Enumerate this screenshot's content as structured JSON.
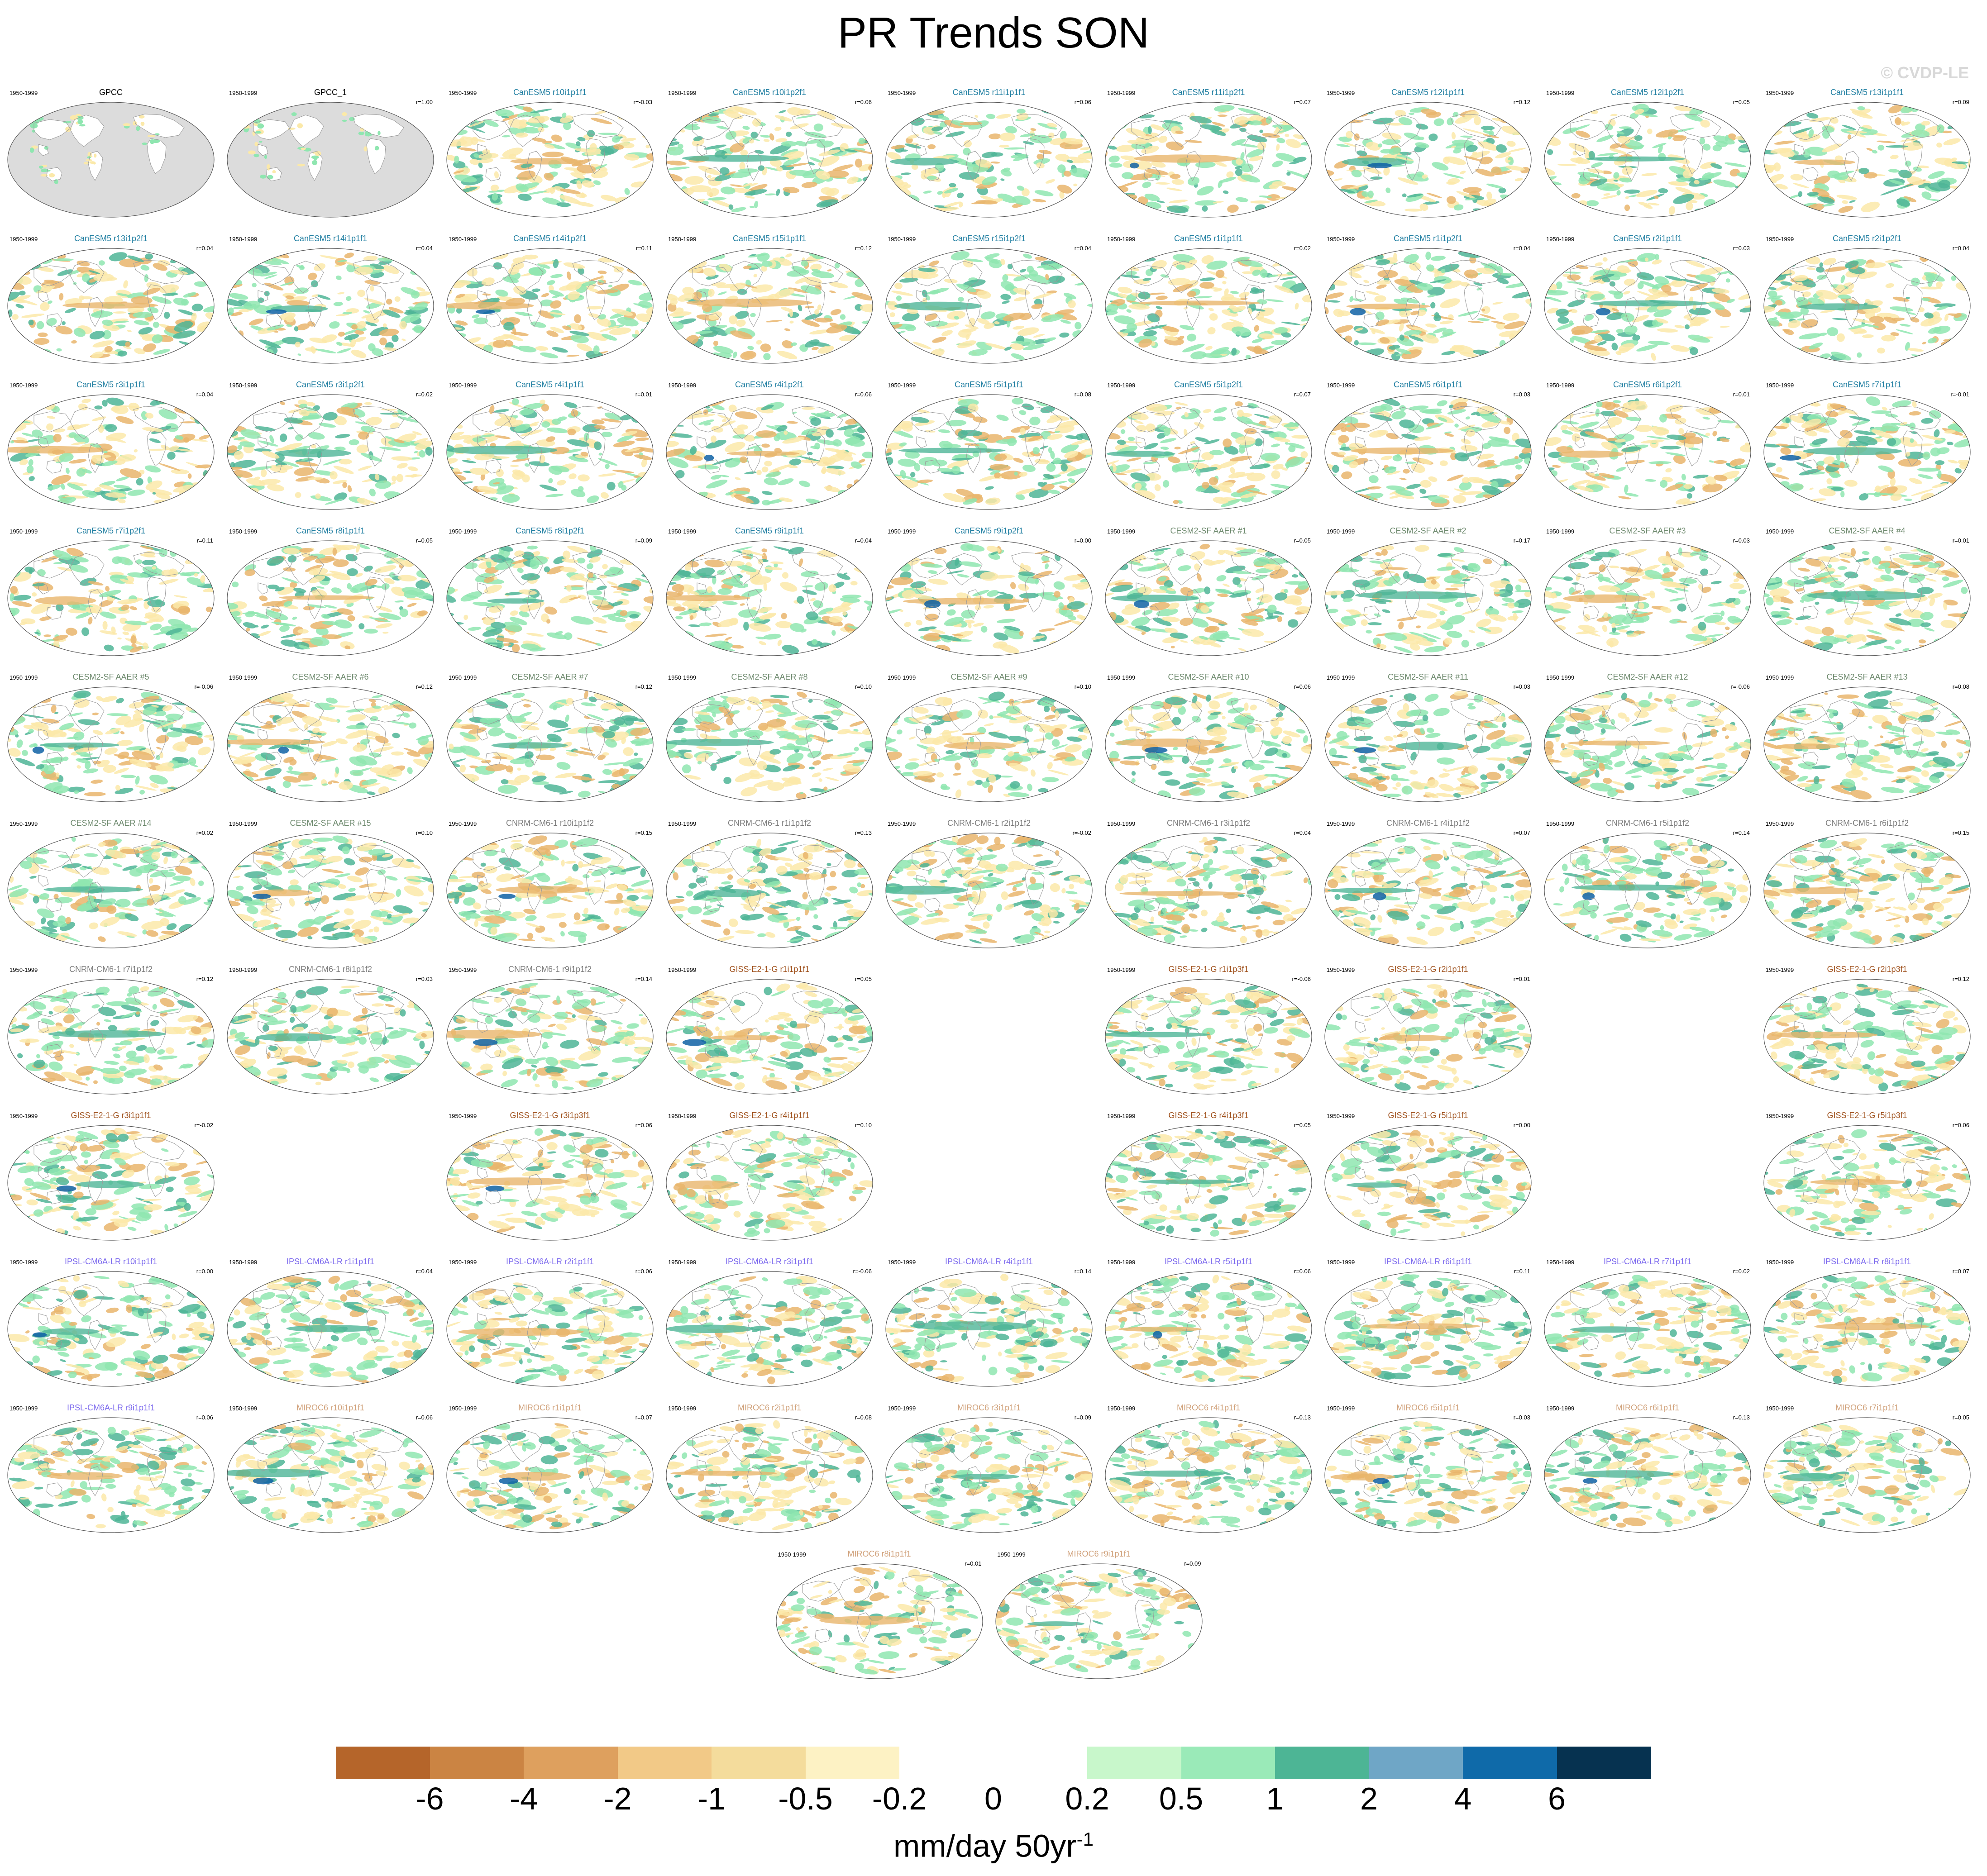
{
  "title": "PR Trends SON",
  "watermark": "© CVDP-LE",
  "period": "1950-1999",
  "colors": {
    "brown_dark": "#b5652a",
    "tan": "#e9b56c",
    "yellow": "#fbe9a9",
    "green": "#8fe6b0",
    "teal": "#4fb597",
    "blue": "#0f62a5",
    "navy": "#063250",
    "land": "#dcdcdc",
    "canesm5_label": "#1f7ea1",
    "cesm2_label": "#6e8a6e",
    "cnrm_label": "#7d7d7d",
    "giss_label": "#a0521e",
    "ipsl_label": "#7b68ee",
    "miroc_label": "#d0a17a"
  },
  "rows": [
    [
      {
        "name": "GPCC",
        "r": "",
        "col": 0,
        "obs": true,
        "style": "obs"
      },
      {
        "name": "GPCC_1",
        "r": "r=1.00",
        "col": 1,
        "obs": true,
        "style": "obs"
      },
      {
        "name": "CanESM5 r10i1p1f1",
        "r": "r=-0.03",
        "col": 2,
        "style": "canesm5"
      },
      {
        "name": "CanESM5 r10i1p2f1",
        "r": "r=0.06",
        "col": 3,
        "style": "canesm5"
      },
      {
        "name": "CanESM5 r11i1p1f1",
        "r": "r=0.06",
        "col": 4,
        "style": "canesm5"
      },
      {
        "name": "CanESM5 r11i1p2f1",
        "r": "r=0.07",
        "col": 5,
        "style": "canesm5"
      },
      {
        "name": "CanESM5 r12i1p1f1",
        "r": "r=0.12",
        "col": 6,
        "style": "canesm5"
      },
      {
        "name": "CanESM5 r12i1p2f1",
        "r": "r=0.05",
        "col": 7,
        "style": "canesm5"
      },
      {
        "name": "CanESM5 r13i1p1f1",
        "r": "r=0.09",
        "col": 8,
        "style": "canesm5"
      }
    ],
    [
      {
        "name": "CanESM5 r13i1p2f1",
        "r": "r=0.04",
        "col": 0,
        "style": "canesm5"
      },
      {
        "name": "CanESM5 r14i1p1f1",
        "r": "r=0.04",
        "col": 1,
        "style": "canesm5"
      },
      {
        "name": "CanESM5 r14i1p2f1",
        "r": "r=0.11",
        "col": 2,
        "style": "canesm5"
      },
      {
        "name": "CanESM5 r15i1p1f1",
        "r": "r=0.12",
        "col": 3,
        "style": "canesm5"
      },
      {
        "name": "CanESM5 r15i1p2f1",
        "r": "r=0.04",
        "col": 4,
        "style": "canesm5"
      },
      {
        "name": "CanESM5 r1i1p1f1",
        "r": "r=0.02",
        "col": 5,
        "style": "canesm5"
      },
      {
        "name": "CanESM5 r1i1p2f1",
        "r": "r=0.04",
        "col": 6,
        "style": "canesm5"
      },
      {
        "name": "CanESM5 r2i1p1f1",
        "r": "r=0.03",
        "col": 7,
        "style": "canesm5"
      },
      {
        "name": "CanESM5 r2i1p2f1",
        "r": "r=0.04",
        "col": 8,
        "style": "canesm5"
      }
    ],
    [
      {
        "name": "CanESM5 r3i1p1f1",
        "r": "r=0.04",
        "col": 0,
        "style": "canesm5"
      },
      {
        "name": "CanESM5 r3i1p2f1",
        "r": "r=0.02",
        "col": 1,
        "style": "canesm5"
      },
      {
        "name": "CanESM5 r4i1p1f1",
        "r": "r=0.01",
        "col": 2,
        "style": "canesm5"
      },
      {
        "name": "CanESM5 r4i1p2f1",
        "r": "r=0.06",
        "col": 3,
        "style": "canesm5"
      },
      {
        "name": "CanESM5 r5i1p1f1",
        "r": "r=0.08",
        "col": 4,
        "style": "canesm5"
      },
      {
        "name": "CanESM5 r5i1p2f1",
        "r": "r=0.07",
        "col": 5,
        "style": "canesm5"
      },
      {
        "name": "CanESM5 r6i1p1f1",
        "r": "r=0.03",
        "col": 6,
        "style": "canesm5"
      },
      {
        "name": "CanESM5 r6i1p2f1",
        "r": "r=0.01",
        "col": 7,
        "style": "canesm5"
      },
      {
        "name": "CanESM5 r7i1p1f1",
        "r": "r=-0.01",
        "col": 8,
        "style": "canesm5"
      }
    ],
    [
      {
        "name": "CanESM5 r7i1p2f1",
        "r": "r=0.11",
        "col": 0,
        "style": "canesm5"
      },
      {
        "name": "CanESM5 r8i1p1f1",
        "r": "r=0.05",
        "col": 1,
        "style": "canesm5"
      },
      {
        "name": "CanESM5 r8i1p2f1",
        "r": "r=0.09",
        "col": 2,
        "style": "canesm5"
      },
      {
        "name": "CanESM5 r9i1p1f1",
        "r": "r=0.04",
        "col": 3,
        "style": "canesm5"
      },
      {
        "name": "CanESM5 r9i1p2f1",
        "r": "r=0.00",
        "col": 4,
        "style": "canesm5"
      },
      {
        "name": "CESM2-SF AAER #1",
        "r": "r=0.05",
        "col": 5,
        "style": "cesm2"
      },
      {
        "name": "CESM2-SF AAER #2",
        "r": "r=0.17",
        "col": 6,
        "style": "cesm2"
      },
      {
        "name": "CESM2-SF AAER #3",
        "r": "r=0.03",
        "col": 7,
        "style": "cesm2"
      },
      {
        "name": "CESM2-SF AAER #4",
        "r": "r=0.01",
        "col": 8,
        "style": "cesm2"
      }
    ],
    [
      {
        "name": "CESM2-SF AAER #5",
        "r": "r=-0.06",
        "col": 0,
        "style": "cesm2"
      },
      {
        "name": "CESM2-SF AAER #6",
        "r": "r=0.12",
        "col": 1,
        "style": "cesm2"
      },
      {
        "name": "CESM2-SF AAER #7",
        "r": "r=0.12",
        "col": 2,
        "style": "cesm2"
      },
      {
        "name": "CESM2-SF AAER #8",
        "r": "r=0.10",
        "col": 3,
        "style": "cesm2"
      },
      {
        "name": "CESM2-SF AAER #9",
        "r": "r=0.10",
        "col": 4,
        "style": "cesm2"
      },
      {
        "name": "CESM2-SF AAER #10",
        "r": "r=0.06",
        "col": 5,
        "style": "cesm2"
      },
      {
        "name": "CESM2-SF AAER #11",
        "r": "r=0.03",
        "col": 6,
        "style": "cesm2"
      },
      {
        "name": "CESM2-SF AAER #12",
        "r": "r=-0.06",
        "col": 7,
        "style": "cesm2"
      },
      {
        "name": "CESM2-SF AAER #13",
        "r": "r=0.08",
        "col": 8,
        "style": "cesm2"
      }
    ],
    [
      {
        "name": "CESM2-SF AAER #14",
        "r": "r=0.02",
        "col": 0,
        "style": "cesm2"
      },
      {
        "name": "CESM2-SF AAER #15",
        "r": "r=0.10",
        "col": 1,
        "style": "cesm2"
      },
      {
        "name": "CNRM-CM6-1 r10i1p1f2",
        "r": "r=0.15",
        "col": 2,
        "style": "cnrm"
      },
      {
        "name": "CNRM-CM6-1 r1i1p1f2",
        "r": "r=0.13",
        "col": 3,
        "style": "cnrm"
      },
      {
        "name": "CNRM-CM6-1 r2i1p1f2",
        "r": "r=-0.02",
        "col": 4,
        "style": "cnrm"
      },
      {
        "name": "CNRM-CM6-1 r3i1p1f2",
        "r": "r=0.04",
        "col": 5,
        "style": "cnrm"
      },
      {
        "name": "CNRM-CM6-1 r4i1p1f2",
        "r": "r=0.07",
        "col": 6,
        "style": "cnrm"
      },
      {
        "name": "CNRM-CM6-1 r5i1p1f2",
        "r": "r=0.14",
        "col": 7,
        "style": "cnrm"
      },
      {
        "name": "CNRM-CM6-1 r6i1p1f2",
        "r": "r=0.15",
        "col": 8,
        "style": "cnrm"
      }
    ],
    [
      {
        "name": "CNRM-CM6-1 r7i1p1f2",
        "r": "r=0.12",
        "col": 0,
        "style": "cnrm"
      },
      {
        "name": "CNRM-CM6-1 r8i1p1f2",
        "r": "r=0.03",
        "col": 1,
        "style": "cnrm"
      },
      {
        "name": "CNRM-CM6-1 r9i1p1f2",
        "r": "r=0.14",
        "col": 2,
        "style": "cnrm"
      },
      {
        "name": "GISS-E2-1-G r1i1p1f1",
        "r": "r=0.05",
        "col": 3,
        "style": "giss"
      },
      {
        "name": "GISS-E2-1-G r1i1p3f1",
        "r": "r=-0.06",
        "col": 5,
        "style": "giss"
      },
      {
        "name": "GISS-E2-1-G r2i1p1f1",
        "r": "r=0.01",
        "col": 6,
        "style": "giss"
      },
      {
        "name": "GISS-E2-1-G r2i1p3f1",
        "r": "r=0.12",
        "col": 8,
        "style": "giss"
      }
    ],
    [
      {
        "name": "GISS-E2-1-G r3i1p1f1",
        "r": "r=-0.02",
        "col": 0,
        "style": "giss"
      },
      {
        "name": "GISS-E2-1-G r3i1p3f1",
        "r": "r=0.06",
        "col": 2,
        "style": "giss"
      },
      {
        "name": "GISS-E2-1-G r4i1p1f1",
        "r": "r=0.10",
        "col": 3,
        "style": "giss"
      },
      {
        "name": "GISS-E2-1-G r4i1p3f1",
        "r": "r=0.05",
        "col": 5,
        "style": "giss"
      },
      {
        "name": "GISS-E2-1-G r5i1p1f1",
        "r": "r=0.00",
        "col": 6,
        "style": "giss"
      },
      {
        "name": "GISS-E2-1-G r5i1p3f1",
        "r": "r=0.06",
        "col": 8,
        "style": "giss"
      }
    ],
    [
      {
        "name": "IPSL-CM6A-LR r10i1p1f1",
        "r": "r=0.00",
        "col": 0,
        "style": "ipsl"
      },
      {
        "name": "IPSL-CM6A-LR r1i1p1f1",
        "r": "r=0.04",
        "col": 1,
        "style": "ipsl"
      },
      {
        "name": "IPSL-CM6A-LR r2i1p1f1",
        "r": "r=0.06",
        "col": 2,
        "style": "ipsl"
      },
      {
        "name": "IPSL-CM6A-LR r3i1p1f1",
        "r": "r=-0.06",
        "col": 3,
        "style": "ipsl"
      },
      {
        "name": "IPSL-CM6A-LR r4i1p1f1",
        "r": "r=0.14",
        "col": 4,
        "style": "ipsl"
      },
      {
        "name": "IPSL-CM6A-LR r5i1p1f1",
        "r": "r=0.06",
        "col": 5,
        "style": "ipsl"
      },
      {
        "name": "IPSL-CM6A-LR r6i1p1f1",
        "r": "r=0.11",
        "col": 6,
        "style": "ipsl"
      },
      {
        "name": "IPSL-CM6A-LR r7i1p1f1",
        "r": "r=0.02",
        "col": 7,
        "style": "ipsl"
      },
      {
        "name": "IPSL-CM6A-LR r8i1p1f1",
        "r": "r=0.07",
        "col": 8,
        "style": "ipsl"
      }
    ],
    [
      {
        "name": "IPSL-CM6A-LR r9i1p1f1",
        "r": "r=0.06",
        "col": 0,
        "style": "ipsl"
      },
      {
        "name": "MIROC6 r10i1p1f1",
        "r": "r=0.06",
        "col": 1,
        "style": "miroc"
      },
      {
        "name": "MIROC6 r1i1p1f1",
        "r": "r=0.07",
        "col": 2,
        "style": "miroc"
      },
      {
        "name": "MIROC6 r2i1p1f1",
        "r": "r=0.08",
        "col": 3,
        "style": "miroc"
      },
      {
        "name": "MIROC6 r3i1p1f1",
        "r": "r=0.09",
        "col": 4,
        "style": "miroc"
      },
      {
        "name": "MIROC6 r4i1p1f1",
        "r": "r=0.13",
        "col": 5,
        "style": "miroc"
      },
      {
        "name": "MIROC6 r5i1p1f1",
        "r": "r=0.03",
        "col": 6,
        "style": "miroc"
      },
      {
        "name": "MIROC6 r6i1p1f1",
        "r": "r=0.13",
        "col": 7,
        "style": "miroc"
      },
      {
        "name": "MIROC6 r7i1p1f1",
        "r": "r=0.05",
        "col": 8,
        "style": "miroc"
      }
    ],
    [
      {
        "name": "MIROC6 r8i1p1f1",
        "r": "r=0.01",
        "col": 3.5,
        "style": "miroc"
      },
      {
        "name": "MIROC6 r9i1p1f1",
        "r": "r=0.09",
        "col": 4.5,
        "style": "miroc"
      }
    ]
  ],
  "colorbar": {
    "colors": [
      "#b5652a",
      "#cb8443",
      "#dea05e",
      "#f2c987",
      "#f4dc9c",
      "#fdf2c4",
      "#ffffff",
      "#ffffff",
      "#c8f7cb",
      "#9aeab8",
      "#4db595",
      "#6fa6c6",
      "#0f6aa9",
      "#063250"
    ],
    "labels": [
      "-6",
      "-4",
      "-2",
      "-1",
      "-0.5",
      "-0.2",
      "0",
      "0.2",
      "0.5",
      "1",
      "2",
      "4",
      "6"
    ],
    "units": "mm/day 50yr",
    "units_sup": "-1"
  }
}
